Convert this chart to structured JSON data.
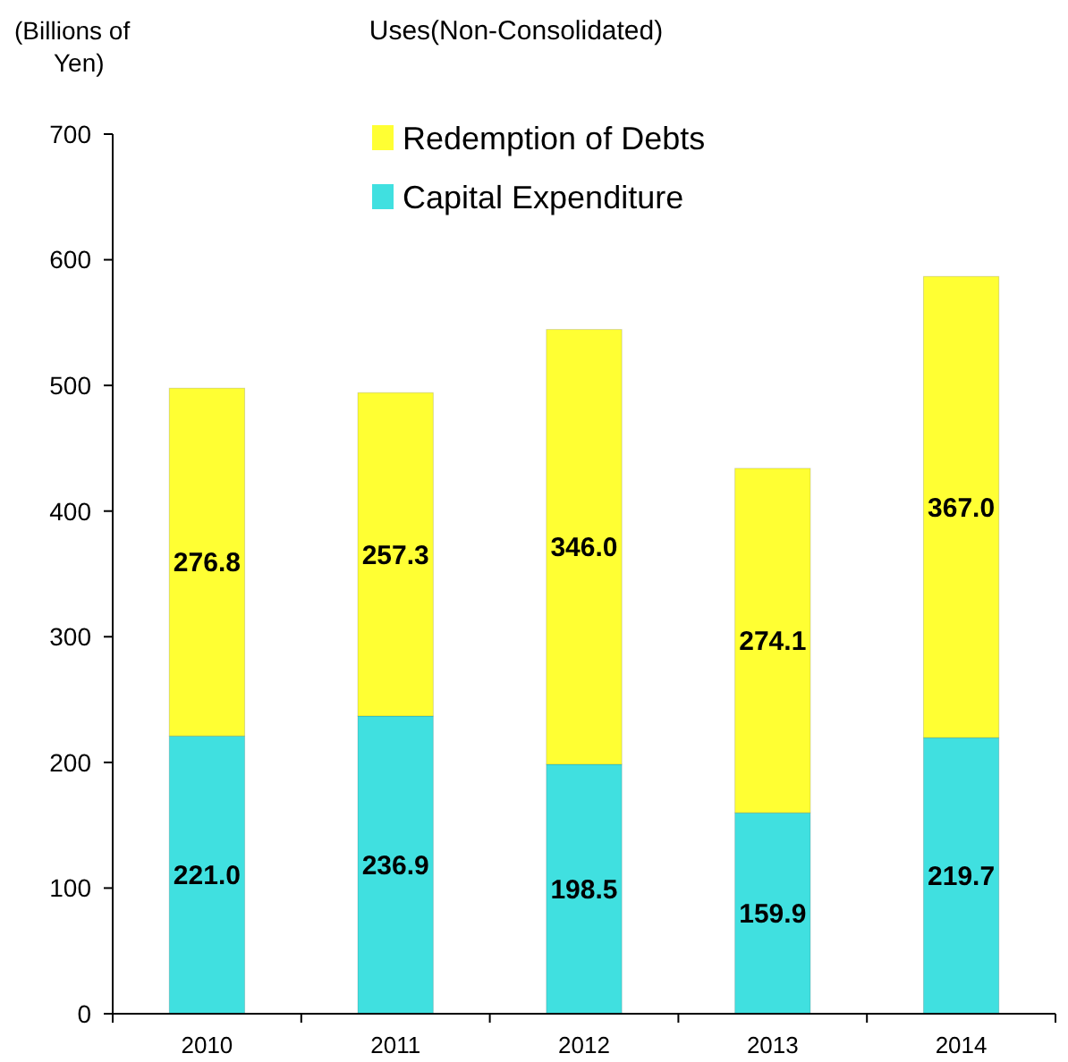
{
  "chart_data": {
    "type": "bar",
    "title": "Uses(Non-Consolidated)",
    "ylabel": "(Billions of\nYen)",
    "categories": [
      "2010",
      "2011",
      "2012",
      "2013",
      "2014"
    ],
    "stacked": true,
    "legend": "top",
    "ylim": [
      0,
      700
    ],
    "yticks": [
      0,
      100,
      200,
      300,
      400,
      500,
      600,
      700
    ],
    "series": [
      {
        "name": "Capital Expenditure",
        "color": "#40e0e0",
        "values": [
          221.0,
          236.9,
          198.5,
          159.9,
          219.7
        ],
        "value_labels": [
          "221.0",
          "236.9",
          "198.5",
          "159.9",
          "219.7"
        ]
      },
      {
        "name": "Redemption of Debts",
        "color": "#ffff33",
        "values": [
          276.8,
          257.3,
          346.0,
          274.1,
          367.0
        ],
        "value_labels": [
          "276.8",
          "257.3",
          "346.0",
          "274.1",
          "367.0"
        ]
      }
    ]
  }
}
